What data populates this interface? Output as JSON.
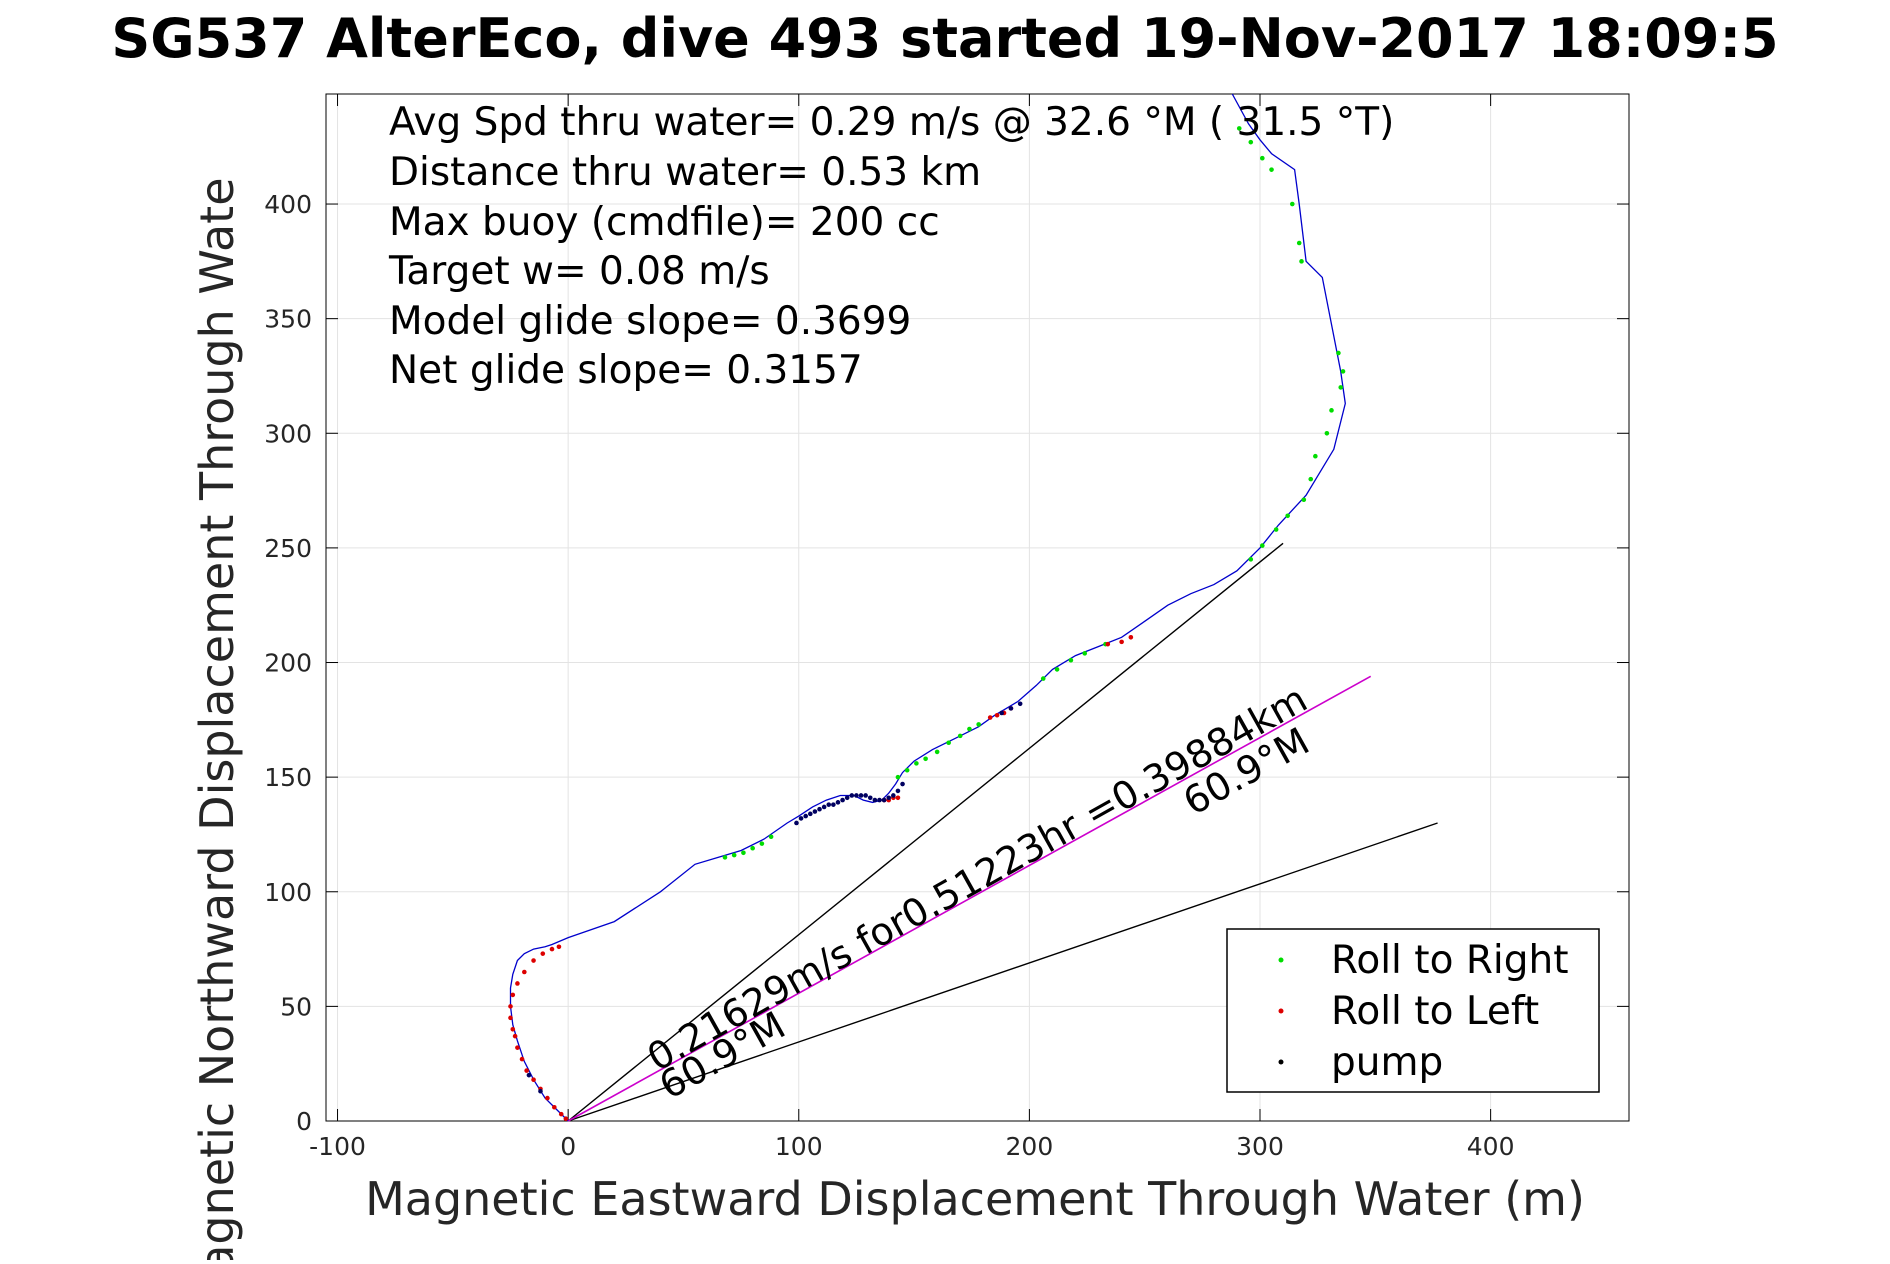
{
  "chart_data": {
    "type": "line",
    "title": "SG537 AlterEco, dive 493 started 19-Nov-2017 18:09:5",
    "xlabel": "Magnetic Eastward Displacement Through Water (m)",
    "ylabel": "Magnetic Northward Displacement Through Wate",
    "xlim": [
      -105,
      460
    ],
    "ylim": [
      0,
      448
    ],
    "grid": true,
    "x_ticks": [
      -100,
      0,
      100,
      200,
      300,
      400
    ],
    "x_tick_labels": [
      "-100",
      "0",
      "100",
      "200",
      "300",
      "400"
    ],
    "y_ticks": [
      0,
      50,
      100,
      150,
      200,
      250,
      300,
      350,
      400
    ],
    "y_tick_labels": [
      "0",
      "50",
      "100",
      "150",
      "200",
      "250",
      "300",
      "350",
      "400"
    ],
    "annotations": [
      "Avg Spd thru water=  0.29 m/s @  32.6 °M ( 31.5 °T)",
      "Distance thru water=  0.53 km",
      "Max buoy (cmdfile)= 200 cc",
      "Target w= 0.08 m/s",
      "Model glide slope= 0.3699",
      "Net glide slope= 0.3157"
    ],
    "current_label": "0.21629m/s for0.51223hr =0.39884km",
    "heading_label_upper": "60.9°M",
    "heading_label_lower": "60.9°M",
    "legend_position": "bottom-right",
    "legend": [
      {
        "label": "Roll to Right",
        "color": "#00dd00"
      },
      {
        "label": "Roll to Left",
        "color": "#dd0000"
      },
      {
        "label": "pump",
        "color": "#000000"
      }
    ],
    "colors": {
      "track": "#0000cc",
      "roll_right": "#00dd00",
      "roll_left": "#dd0000",
      "pump": "#000060",
      "current_line": "#cc00cc",
      "reference_lines": "#000000"
    },
    "track": {
      "x": [
        0,
        -5,
        -10,
        -15,
        -19,
        -22,
        -24,
        -25,
        -25,
        -24,
        -22,
        -19,
        -15,
        -10,
        -7,
        0,
        20,
        40,
        55,
        65,
        75,
        85,
        95,
        100,
        106,
        112,
        118,
        124,
        128,
        132,
        136,
        139,
        142,
        145,
        150,
        158,
        168,
        178,
        185,
        190,
        195,
        203,
        210,
        220,
        230,
        240,
        250,
        260,
        270,
        280,
        290,
        300,
        308,
        320,
        332,
        337,
        335,
        327,
        320,
        317,
        315,
        305,
        300,
        295,
        288
      ],
      "y": [
        0,
        5,
        10,
        18,
        26,
        35,
        42,
        50,
        58,
        64,
        70,
        73,
        75,
        76,
        77,
        80,
        87,
        100,
        112,
        115,
        118,
        123,
        130,
        133,
        137,
        140,
        142,
        142,
        140,
        139,
        140,
        143,
        147,
        152,
        157,
        162,
        167,
        172,
        177,
        180,
        183,
        190,
        197,
        203,
        207,
        211,
        218,
        225,
        230,
        234,
        240,
        250,
        260,
        273,
        293,
        313,
        327,
        368,
        375,
        400,
        415,
        422,
        428,
        435,
        448
      ]
    },
    "roll_right_points": {
      "x": [
        68,
        72,
        76,
        80,
        84,
        88,
        143,
        147,
        151,
        155,
        160,
        165,
        170,
        174,
        178,
        206,
        212,
        218,
        224,
        233,
        296,
        301,
        307,
        312,
        319,
        322,
        324,
        329,
        331,
        335,
        336,
        334,
        318,
        317,
        314,
        305,
        301,
        296,
        291
      ],
      "y": [
        115,
        116,
        117,
        119,
        121,
        124,
        150,
        153,
        156,
        158,
        161,
        165,
        168,
        171,
        173,
        193,
        197,
        201,
        204,
        208,
        245,
        251,
        258,
        264,
        271,
        280,
        290,
        300,
        310,
        320,
        327,
        335,
        375,
        383,
        400,
        415,
        420,
        427,
        433
      ]
    },
    "roll_left_points": {
      "x": [
        -24,
        -25,
        -25,
        -24,
        -22,
        -19,
        -15,
        -11,
        -7,
        -4,
        137,
        139,
        141,
        143,
        183,
        186,
        189,
        192,
        234,
        240,
        244
      ],
      "y": [
        40,
        45,
        50,
        55,
        60,
        65,
        70,
        73,
        75,
        76,
        140,
        140,
        141,
        141,
        176,
        177,
        178,
        180,
        208,
        209,
        211
      ],
      "y_lower_leg": []
    },
    "roll_left_lower_leg": {
      "x": [
        -1,
        -3,
        -6,
        -9,
        -12,
        -15,
        -18,
        -20,
        -22,
        -23
      ],
      "y": [
        1,
        3,
        6,
        10,
        14,
        18,
        22,
        27,
        32,
        37
      ]
    },
    "pump_points": {
      "x": [
        99,
        101,
        103,
        105,
        107,
        109,
        111,
        113,
        115,
        117,
        119,
        121,
        123,
        125,
        127,
        129,
        131,
        133,
        135,
        137,
        139,
        141,
        143,
        145,
        188,
        192,
        196,
        -12,
        -17
      ],
      "y": [
        130,
        132,
        133,
        134,
        135,
        136,
        137,
        138,
        138,
        139,
        140,
        141,
        142,
        142,
        142,
        142,
        141,
        140,
        140,
        140,
        141,
        142,
        144,
        147,
        178,
        180,
        182,
        13,
        20
      ]
    },
    "current_line": {
      "x": [
        0,
        348
      ],
      "y": [
        0,
        194
      ]
    },
    "reference_line_steep": {
      "x": [
        0,
        310
      ],
      "y": [
        0,
        252
      ]
    },
    "reference_line_shallow": {
      "x": [
        0,
        377
      ],
      "y": [
        0,
        130
      ]
    }
  }
}
